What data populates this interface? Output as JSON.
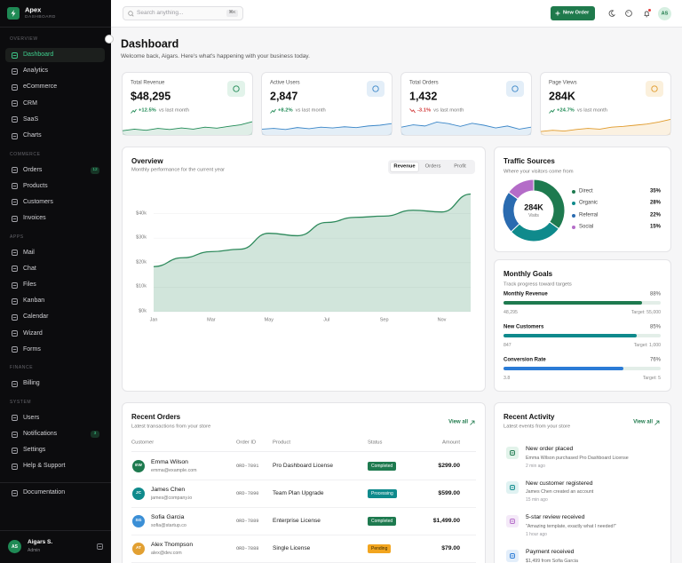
{
  "sidebar": {
    "brand": "Apex",
    "brand_sub": "DASHBOARD",
    "sections": [
      {
        "title": "OVERVIEW",
        "items": [
          {
            "label": "Dashboard",
            "active": true
          },
          {
            "label": "Analytics"
          },
          {
            "label": "eCommerce"
          },
          {
            "label": "CRM"
          },
          {
            "label": "SaaS"
          },
          {
            "label": "Charts"
          }
        ]
      },
      {
        "title": "COMMERCE",
        "items": [
          {
            "label": "Orders",
            "badge": "12"
          },
          {
            "label": "Products"
          },
          {
            "label": "Customers"
          },
          {
            "label": "Invoices"
          }
        ]
      },
      {
        "title": "APPS",
        "items": [
          {
            "label": "Mail"
          },
          {
            "label": "Chat"
          },
          {
            "label": "Files"
          },
          {
            "label": "Kanban"
          },
          {
            "label": "Calendar"
          },
          {
            "label": "Wizard"
          },
          {
            "label": "Forms"
          }
        ]
      },
      {
        "title": "FINANCE",
        "items": [
          {
            "label": "Billing"
          }
        ]
      },
      {
        "title": "SYSTEM",
        "items": [
          {
            "label": "Users"
          },
          {
            "label": "Notifications",
            "badge": "3"
          },
          {
            "label": "Settings"
          },
          {
            "label": "Help & Support"
          }
        ]
      }
    ],
    "documentation": "Documentation",
    "user": {
      "initials": "AS",
      "name": "Aigars S.",
      "role": "Admin"
    }
  },
  "topbar": {
    "search_placeholder": "Search anything...",
    "shortcut": "⌘K",
    "new_order": "New Order",
    "avatar": "AS"
  },
  "header": {
    "title": "Dashboard",
    "subtitle": "Welcome back, Aigars. Here's what's happening with your business today."
  },
  "kpis": [
    {
      "label": "Total Revenue",
      "value": "$48,295",
      "change": "+12.5%",
      "change_note": "vs last month",
      "change_color": "#1f8a55",
      "color": "#1f8a55",
      "icon_bg": "#e2f3ea",
      "trend": [
        22,
        30,
        24,
        34,
        28,
        36,
        30,
        40,
        35,
        44,
        52,
        68
      ]
    },
    {
      "label": "Active Users",
      "value": "2,847",
      "change": "+8.2%",
      "change_note": "vs last month",
      "change_color": "#1f8a55",
      "color": "#3a86c8",
      "icon_bg": "#e3eef8",
      "trend": [
        30,
        34,
        28,
        38,
        32,
        40,
        36,
        42,
        38,
        46,
        50,
        58
      ]
    },
    {
      "label": "Total Orders",
      "value": "1,432",
      "change": "-3.1%",
      "change_note": "vs last month",
      "change_color": "#d23b3b",
      "color": "#3a86c8",
      "icon_bg": "#e3eef8",
      "trend": [
        40,
        52,
        46,
        66,
        58,
        44,
        60,
        50,
        36,
        46,
        30,
        40
      ]
    },
    {
      "label": "Page Views",
      "value": "284K",
      "change": "+24.7%",
      "change_note": "vs last month",
      "change_color": "#1f8a55",
      "color": "#e09a2a",
      "icon_bg": "#fbf0dc",
      "trend": [
        18,
        24,
        20,
        28,
        34,
        30,
        40,
        44,
        50,
        56,
        66,
        80
      ]
    }
  ],
  "overview": {
    "title": "Overview",
    "subtitle": "Monthly performance for the current year",
    "tabs": [
      {
        "label": "Revenue",
        "active": true
      },
      {
        "label": "Orders"
      },
      {
        "label": "Profit"
      }
    ],
    "chart_data": {
      "type": "area",
      "categories": [
        "Jan",
        null,
        "Mar",
        null,
        "May",
        null,
        "Jul",
        null,
        "Sep",
        null,
        "Nov",
        null
      ],
      "values": [
        18.4,
        22,
        24.5,
        25.5,
        32,
        31,
        36.4,
        38.5,
        39,
        41.4,
        40.7,
        48
      ],
      "color": "#2e8a5c",
      "ylim": [
        0,
        50
      ],
      "yticks": [
        {
          "value": 0,
          "label": "$0k"
        },
        {
          "value": 10,
          "label": "$10k"
        },
        {
          "value": 20,
          "label": "$20k"
        },
        {
          "value": 30,
          "label": "$30k"
        },
        {
          "value": 40,
          "label": "$40k"
        }
      ],
      "grid": true
    }
  },
  "traffic": {
    "title": "Traffic Sources",
    "subtitle": "Where your visitors come from",
    "total": "284K",
    "total_label": "Visits",
    "sources": [
      {
        "name": "Direct",
        "value": 35,
        "label": "35%",
        "color": "#1e7a4f"
      },
      {
        "name": "Organic",
        "value": 28,
        "label": "28%",
        "color": "#0f8a8c"
      },
      {
        "name": "Referral",
        "value": 22,
        "label": "22%",
        "color": "#2a6bb0"
      },
      {
        "name": "Social",
        "value": 15,
        "label": "15%",
        "color": "#b46cc8"
      }
    ]
  },
  "goals": {
    "title": "Monthly Goals",
    "subtitle": "Track progress toward targets",
    "items": [
      {
        "label": "Monthly Revenue",
        "percent": 88,
        "percent_label": "88%",
        "current": "48,295",
        "target": "Target: 55,000",
        "color": "#1e7a4f"
      },
      {
        "label": "New Customers",
        "percent": 85,
        "percent_label": "85%",
        "current": "847",
        "target": "Target: 1,000",
        "color": "#0f8a8c"
      },
      {
        "label": "Conversion Rate",
        "percent": 76,
        "percent_label": "76%",
        "current": "3.8",
        "target": "Target: 5",
        "color": "#2b7bd6"
      }
    ]
  },
  "orders": {
    "title": "Recent Orders",
    "subtitle": "Latest transactions from your store",
    "view_all": "View all",
    "columns": [
      "Customer",
      "Order ID",
      "Product",
      "Status",
      "Amount"
    ],
    "rows": [
      {
        "initials": "EW",
        "avatar_color": "#1e7a4f",
        "name": "Emma Wilson",
        "email": "emma@example.com",
        "order_id": "ORD-7891",
        "product": "Pro Dashboard License",
        "status": "Completed",
        "status_bg": "#1e7a4f",
        "status_fg": "#ffffff",
        "amount": "$299.00"
      },
      {
        "initials": "JC",
        "avatar_color": "#0f8a8c",
        "name": "James Chen",
        "email": "james@company.io",
        "order_id": "ORD-7890",
        "product": "Team Plan Upgrade",
        "status": "Processing",
        "status_bg": "#0f8a8c",
        "status_fg": "#ffffff",
        "amount": "$599.00"
      },
      {
        "initials": "SG",
        "avatar_color": "#3b8fd6",
        "name": "Sofia Garcia",
        "email": "sofia@startup.co",
        "order_id": "ORD-7889",
        "product": "Enterprise License",
        "status": "Completed",
        "status_bg": "#1e7a4f",
        "status_fg": "#ffffff",
        "amount": "$1,499.00"
      },
      {
        "initials": "AT",
        "avatar_color": "#e2a032",
        "name": "Alex Thompson",
        "email": "alex@dev.com",
        "order_id": "ORD-7888",
        "product": "Single License",
        "status": "Pending",
        "status_bg": "#f2a51f",
        "status_fg": "#3a2a00",
        "amount": "$79.00"
      }
    ]
  },
  "activity": {
    "title": "Recent Activity",
    "subtitle": "Latest events from your store",
    "view_all": "View all",
    "items": [
      {
        "title": "New order placed",
        "description": "Emma Wilson purchased Pro Dashboard License",
        "time": "2 min ago",
        "color": "#1e7a4f",
        "bg": "#e2f3ea"
      },
      {
        "title": "New customer registered",
        "description": "James Chen created an account",
        "time": "15 min ago",
        "color": "#0f8a8c",
        "bg": "#e0f2f2"
      },
      {
        "title": "5-star review received",
        "description": "\"Amazing template, exactly what I needed!\"",
        "time": "1 hour ago",
        "color": "#b46cc8",
        "bg": "#f4e9f8"
      },
      {
        "title": "Payment received",
        "description": "$1,499 from Sofia Garcia",
        "color": "#2b7bd6",
        "bg": "#e3eefa"
      }
    ]
  }
}
